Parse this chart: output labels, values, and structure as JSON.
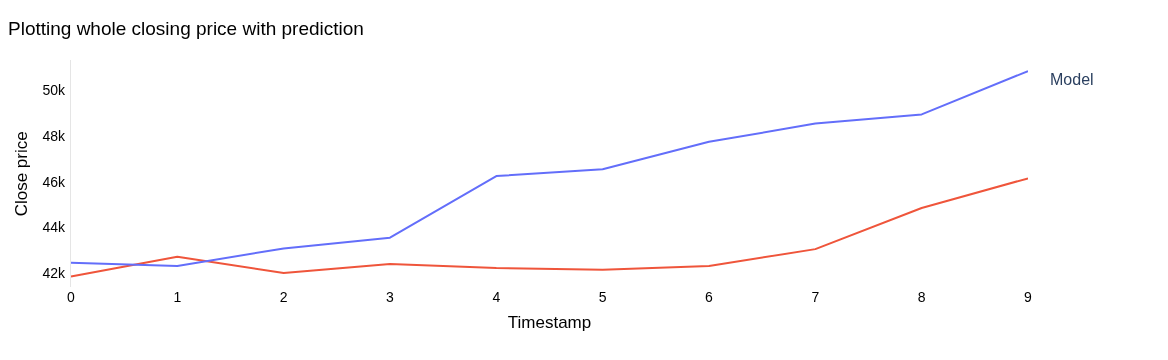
{
  "chart_data": {
    "type": "line",
    "title": "Plotting whole closing price with prediction",
    "xlabel": "Timestamp",
    "ylabel": "Close price",
    "legend_title": "Model",
    "grid": false,
    "x": [
      0,
      1,
      2,
      3,
      4,
      5,
      6,
      7,
      8,
      9
    ],
    "series": [
      {
        "color": "#636efa",
        "values": [
          42500,
          42360,
          43130,
          43600,
          46300,
          46600,
          47800,
          48600,
          49000,
          50900
        ]
      },
      {
        "color": "#ef553b",
        "values": [
          41900,
          42770,
          42050,
          42450,
          42270,
          42200,
          42360,
          43100,
          44900,
          46200
        ]
      }
    ],
    "xlim": [
      0,
      9
    ],
    "xticks": [
      0,
      1,
      2,
      3,
      4,
      5,
      6,
      7,
      8,
      9
    ],
    "ylim": [
      41450,
      51350
    ],
    "yticks": [
      {
        "value": 42000,
        "label": "42k"
      },
      {
        "value": 44000,
        "label": "44k"
      },
      {
        "value": 46000,
        "label": "46k"
      },
      {
        "value": 48000,
        "label": "48k"
      },
      {
        "value": 50000,
        "label": "50k"
      }
    ]
  }
}
